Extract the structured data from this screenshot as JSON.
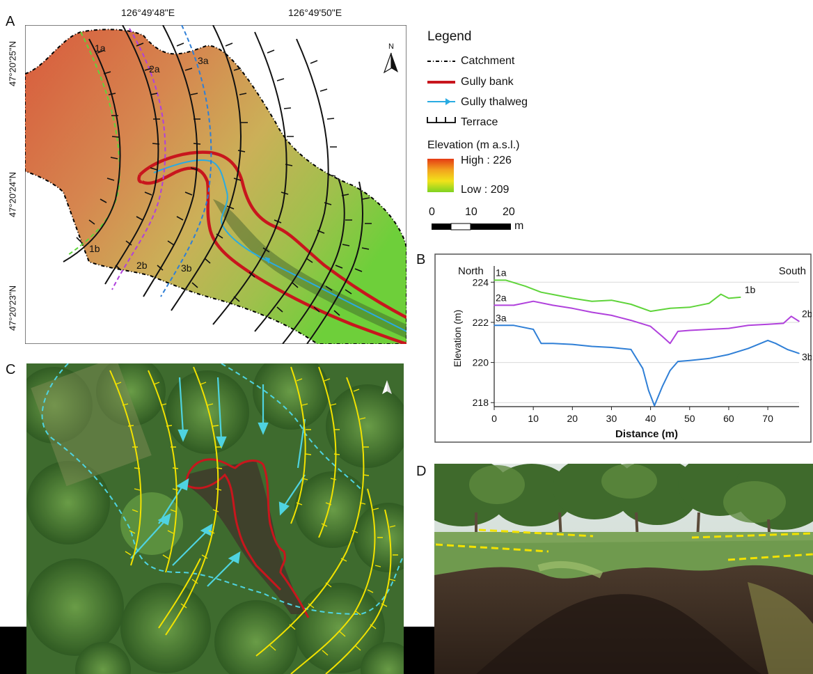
{
  "panels": {
    "a": "A",
    "b": "B",
    "c": "C",
    "d": "D"
  },
  "map": {
    "lon_ticks": [
      "126°49'48\"E",
      "126°49'50\"E"
    ],
    "lat_ticks": [
      "47°20'25\"N",
      "47°20'24\"N",
      "47°20'23\"N"
    ],
    "north_label": "N",
    "profile_labels": [
      "1a",
      "2a",
      "3a",
      "1b",
      "2b",
      "3b"
    ]
  },
  "legend": {
    "title": "Legend",
    "items": [
      {
        "label": "Catchment",
        "symbol": "dash-dot-line",
        "color": "#000000"
      },
      {
        "label": "Gully bank",
        "symbol": "solid-line",
        "color": "#c8161d"
      },
      {
        "label": "Gully thalweg",
        "symbol": "arrow-line",
        "color": "#29abe2"
      },
      {
        "label": "Terrace",
        "symbol": "terrace-ticks",
        "color": "#000000"
      }
    ],
    "elevation_title": "Elevation (m a.s.l.)",
    "high_label": "High : 226",
    "low_label": "Low : 209",
    "scale_ticks": [
      "0",
      "10",
      "20"
    ],
    "scale_unit": "m"
  },
  "colors": {
    "gully_bank": "#c8161d",
    "thalweg": "#29abe2",
    "terrace_photo": "#f2e200",
    "catchment_photo": "#4fd3e0",
    "elev_high": "#e53b14",
    "elev_low": "#7ed321",
    "profile_1": "#5fd43a",
    "profile_2": "#b041dc",
    "profile_3": "#2f7fd6"
  },
  "chart_data": {
    "type": "line",
    "xlabel": "Distance (m)",
    "ylabel": "Elevation (m)",
    "xlim": [
      0,
      78
    ],
    "ylim": [
      217.8,
      224.6
    ],
    "xticks": [
      "0",
      "10",
      "20",
      "30",
      "40",
      "50",
      "60",
      "70"
    ],
    "yticks": [
      "224",
      "222",
      "220",
      "218"
    ],
    "corner_labels": {
      "left": "North",
      "right": "South"
    },
    "grid": true,
    "series": [
      {
        "start_label": "1a",
        "end_label": "1b",
        "color": "#5fd43a",
        "x": [
          0,
          3,
          8,
          12,
          16,
          20,
          25,
          30,
          35,
          40,
          45,
          50,
          55,
          58,
          60,
          63
        ],
        "y": [
          224.1,
          224.1,
          223.8,
          223.5,
          223.35,
          223.2,
          223.05,
          223.1,
          222.9,
          222.55,
          222.7,
          222.75,
          222.95,
          223.4,
          223.2,
          223.25
        ]
      },
      {
        "start_label": "2a",
        "end_label": "2b",
        "color": "#b041dc",
        "x": [
          0,
          5,
          10,
          15,
          20,
          25,
          30,
          35,
          40,
          43,
          45,
          47,
          50,
          55,
          60,
          65,
          70,
          74,
          76,
          78
        ],
        "y": [
          222.85,
          222.85,
          223.05,
          222.85,
          222.7,
          222.5,
          222.35,
          222.1,
          221.8,
          221.3,
          220.95,
          221.55,
          221.6,
          221.65,
          221.7,
          221.85,
          221.9,
          221.95,
          222.3,
          222.05
        ]
      },
      {
        "start_label": "3a",
        "end_label": "3b",
        "color": "#2f7fd6",
        "x": [
          0,
          5,
          10,
          12,
          15,
          20,
          25,
          30,
          35,
          38,
          39.5,
          41,
          43,
          45,
          47,
          50,
          55,
          60,
          65,
          70,
          72,
          75,
          78
        ],
        "y": [
          221.85,
          221.85,
          221.65,
          220.95,
          220.95,
          220.9,
          220.8,
          220.75,
          220.65,
          219.7,
          218.6,
          217.85,
          218.8,
          219.6,
          220.05,
          220.1,
          220.2,
          220.4,
          220.7,
          221.1,
          220.95,
          220.65,
          220.45
        ]
      }
    ]
  }
}
